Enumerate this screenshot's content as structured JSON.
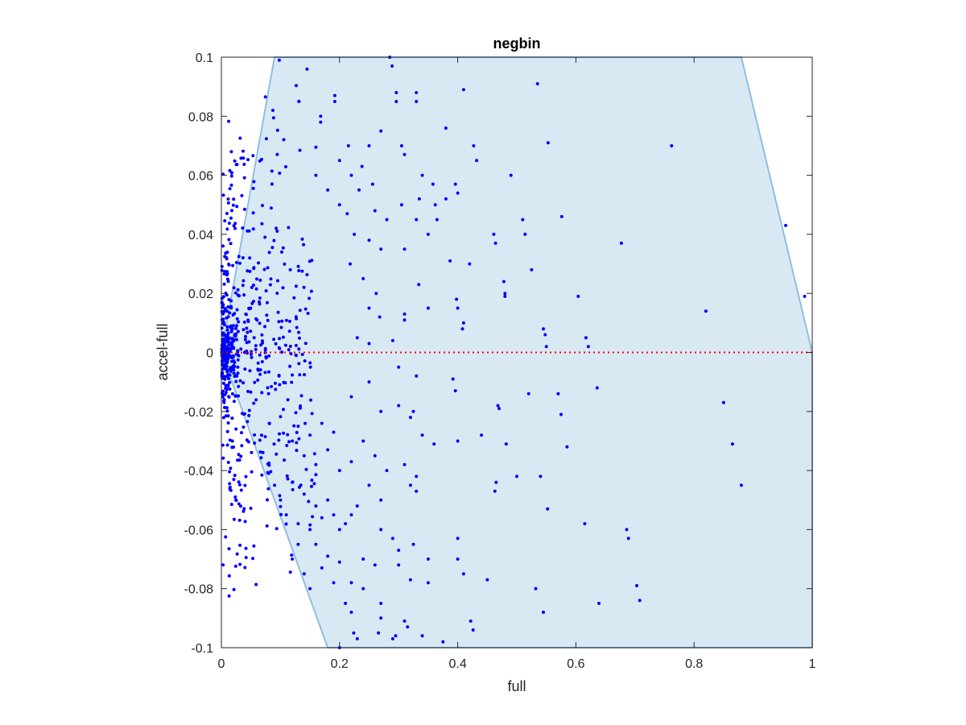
{
  "chart_data": {
    "type": "scatter",
    "title": "negbin",
    "xlabel": "full",
    "ylabel": "accel-full",
    "xlim": [
      0,
      1
    ],
    "ylim": [
      -0.1,
      0.1
    ],
    "xticks": [
      "0",
      "0.2",
      "0.4",
      "0.6",
      "0.8",
      "1"
    ],
    "xtick_values": [
      0,
      0.2,
      0.4,
      0.6,
      0.8,
      1
    ],
    "yticks": [
      "-0.1",
      "-0.08",
      "-0.06",
      "-0.04",
      "-0.02",
      "0",
      "0.02",
      "0.04",
      "0.06",
      "0.08",
      "0.1"
    ],
    "ytick_values": [
      -0.1,
      -0.08,
      -0.06,
      -0.04,
      -0.02,
      0,
      0.02,
      0.04,
      0.06,
      0.08,
      0.1
    ],
    "grid": false,
    "region": {
      "polygon": [
        [
          0,
          0
        ],
        [
          0.09,
          0.1
        ],
        [
          0.88,
          0.1
        ],
        [
          1.0,
          0
        ],
        [
          1.0,
          -0.1
        ],
        [
          0.18,
          -0.1
        ]
      ],
      "fill_color": "#d9e9f4",
      "edge_color": "#8fbfe0"
    },
    "reference_line": {
      "y": 0,
      "color": "#ff0000",
      "style": "dotted"
    },
    "marker_color": "#0000ff",
    "points": [
      [
        0.098,
        0.099
      ],
      [
        0.285,
        0.1
      ],
      [
        0.289,
        0.097
      ],
      [
        0.145,
        0.096
      ],
      [
        0.535,
        0.091
      ],
      [
        0.41,
        0.089
      ],
      [
        0.192,
        0.087
      ],
      [
        0.192,
        0.085
      ],
      [
        0.296,
        0.088
      ],
      [
        0.296,
        0.085
      ],
      [
        0.33,
        0.088
      ],
      [
        0.33,
        0.085
      ],
      [
        0.131,
        0.085
      ],
      [
        0.087,
        0.082
      ],
      [
        0.168,
        0.08
      ],
      [
        0.168,
        0.078
      ],
      [
        0.27,
        0.075
      ],
      [
        0.38,
        0.076
      ],
      [
        0.553,
        0.071
      ],
      [
        0.427,
        0.07
      ],
      [
        0.432,
        0.065
      ],
      [
        0.762,
        0.07
      ],
      [
        0.215,
        0.07
      ],
      [
        0.25,
        0.07
      ],
      [
        0.305,
        0.07
      ],
      [
        0.31,
        0.067
      ],
      [
        0.34,
        0.06
      ],
      [
        0.49,
        0.06
      ],
      [
        0.2,
        0.065
      ],
      [
        0.22,
        0.06
      ],
      [
        0.238,
        0.063
      ],
      [
        0.256,
        0.057
      ],
      [
        0.16,
        0.06
      ],
      [
        0.18,
        0.055
      ],
      [
        0.358,
        0.057
      ],
      [
        0.38,
        0.052
      ],
      [
        0.396,
        0.057
      ],
      [
        0.4,
        0.054
      ],
      [
        0.2,
        0.05
      ],
      [
        0.213,
        0.047
      ],
      [
        0.233,
        0.055
      ],
      [
        0.26,
        0.048
      ],
      [
        0.28,
        0.045
      ],
      [
        0.305,
        0.05
      ],
      [
        0.335,
        0.052
      ],
      [
        0.362,
        0.05
      ],
      [
        0.365,
        0.045
      ],
      [
        0.51,
        0.045
      ],
      [
        0.576,
        0.046
      ],
      [
        0.33,
        0.045
      ],
      [
        0.35,
        0.04
      ],
      [
        0.461,
        0.04
      ],
      [
        0.464,
        0.037
      ],
      [
        0.514,
        0.04
      ],
      [
        0.677,
        0.037
      ],
      [
        0.955,
        0.043
      ],
      [
        0.225,
        0.04
      ],
      [
        0.25,
        0.038
      ],
      [
        0.27,
        0.035
      ],
      [
        0.31,
        0.035
      ],
      [
        0.387,
        0.031
      ],
      [
        0.42,
        0.03
      ],
      [
        0.525,
        0.028
      ],
      [
        0.218,
        0.03
      ],
      [
        0.24,
        0.025
      ],
      [
        0.262,
        0.02
      ],
      [
        0.334,
        0.023
      ],
      [
        0.478,
        0.024
      ],
      [
        0.48,
        0.02
      ],
      [
        0.48,
        0.019
      ],
      [
        0.604,
        0.019
      ],
      [
        0.987,
        0.019
      ],
      [
        0.25,
        0.015
      ],
      [
        0.268,
        0.012
      ],
      [
        0.31,
        0.013
      ],
      [
        0.31,
        0.011
      ],
      [
        0.35,
        0.015
      ],
      [
        0.398,
        0.018
      ],
      [
        0.4,
        0.015
      ],
      [
        0.82,
        0.014
      ],
      [
        0.41,
        0.01
      ],
      [
        0.408,
        0.008
      ],
      [
        0.545,
        0.008
      ],
      [
        0.548,
        0.006
      ],
      [
        0.55,
        0.002
      ],
      [
        0.617,
        0.005
      ],
      [
        0.621,
        0.002
      ],
      [
        0.23,
        0.005
      ],
      [
        0.25,
        0.003
      ],
      [
        0.29,
        0.004
      ],
      [
        0.3,
        -0.005
      ],
      [
        0.33,
        -0.008
      ],
      [
        0.392,
        -0.009
      ],
      [
        0.396,
        -0.013
      ],
      [
        0.468,
        -0.018
      ],
      [
        0.47,
        -0.019
      ],
      [
        0.52,
        -0.014
      ],
      [
        0.57,
        -0.014
      ],
      [
        0.575,
        -0.021
      ],
      [
        0.636,
        -0.012
      ],
      [
        0.85,
        -0.017
      ],
      [
        0.25,
        -0.01
      ],
      [
        0.22,
        -0.015
      ],
      [
        0.27,
        -0.02
      ],
      [
        0.3,
        -0.018
      ],
      [
        0.325,
        -0.02
      ],
      [
        0.32,
        -0.022
      ],
      [
        0.34,
        -0.028
      ],
      [
        0.36,
        -0.031
      ],
      [
        0.4,
        -0.03
      ],
      [
        0.44,
        -0.028
      ],
      [
        0.482,
        -0.031
      ],
      [
        0.585,
        -0.032
      ],
      [
        0.865,
        -0.031
      ],
      [
        0.24,
        -0.03
      ],
      [
        0.26,
        -0.035
      ],
      [
        0.28,
        -0.04
      ],
      [
        0.31,
        -0.038
      ],
      [
        0.33,
        -0.042
      ],
      [
        0.465,
        -0.044
      ],
      [
        0.463,
        -0.047
      ],
      [
        0.5,
        -0.042
      ],
      [
        0.54,
        -0.042
      ],
      [
        0.88,
        -0.045
      ],
      [
        0.25,
        -0.045
      ],
      [
        0.27,
        -0.05
      ],
      [
        0.32,
        -0.045
      ],
      [
        0.33,
        -0.047
      ],
      [
        0.552,
        -0.053
      ],
      [
        0.615,
        -0.058
      ],
      [
        0.686,
        -0.06
      ],
      [
        0.689,
        -0.063
      ],
      [
        0.27,
        -0.06
      ],
      [
        0.29,
        -0.063
      ],
      [
        0.3,
        -0.067
      ],
      [
        0.325,
        -0.065
      ],
      [
        0.4,
        -0.063
      ],
      [
        0.24,
        -0.07
      ],
      [
        0.26,
        -0.072
      ],
      [
        0.3,
        -0.072
      ],
      [
        0.35,
        -0.07
      ],
      [
        0.4,
        -0.07
      ],
      [
        0.22,
        -0.078
      ],
      [
        0.24,
        -0.08
      ],
      [
        0.27,
        -0.085
      ],
      [
        0.32,
        -0.077
      ],
      [
        0.35,
        -0.078
      ],
      [
        0.41,
        -0.075
      ],
      [
        0.45,
        -0.077
      ],
      [
        0.532,
        -0.08
      ],
      [
        0.703,
        -0.079
      ],
      [
        0.708,
        -0.084
      ],
      [
        0.639,
        -0.085
      ],
      [
        0.545,
        -0.088
      ],
      [
        0.22,
        -0.088
      ],
      [
        0.27,
        -0.09
      ],
      [
        0.31,
        -0.091
      ],
      [
        0.315,
        -0.093
      ],
      [
        0.422,
        -0.091
      ],
      [
        0.426,
        -0.094
      ],
      [
        0.224,
        -0.095
      ],
      [
        0.266,
        -0.095
      ],
      [
        0.29,
        -0.097
      ],
      [
        0.295,
        -0.096
      ],
      [
        0.34,
        -0.096
      ],
      [
        0.375,
        -0.098
      ],
      [
        0.2,
        -0.1
      ],
      [
        0.23,
        -0.097
      ],
      [
        0.12,
        -0.07
      ],
      [
        0.13,
        -0.065
      ],
      [
        0.14,
        -0.075
      ],
      [
        0.15,
        -0.08
      ],
      [
        0.16,
        -0.065
      ],
      [
        0.17,
        -0.073
      ],
      [
        0.18,
        -0.069
      ],
      [
        0.19,
        -0.078
      ],
      [
        0.2,
        -0.071
      ],
      [
        0.21,
        -0.085
      ],
      [
        0.08,
        -0.041
      ],
      [
        0.09,
        -0.045
      ],
      [
        0.1,
        -0.05
      ],
      [
        0.11,
        -0.055
      ],
      [
        0.12,
        -0.044
      ],
      [
        0.13,
        -0.058
      ],
      [
        0.14,
        -0.048
      ],
      [
        0.15,
        -0.06
      ],
      [
        0.16,
        -0.052
      ],
      [
        0.17,
        -0.056
      ],
      [
        0.18,
        -0.05
      ],
      [
        0.19,
        -0.055
      ],
      [
        0.2,
        -0.06
      ],
      [
        0.21,
        -0.058
      ],
      [
        0.22,
        -0.055
      ],
      [
        0.23,
        -0.052
      ],
      [
        0.12,
        -0.03
      ],
      [
        0.14,
        -0.035
      ],
      [
        0.16,
        -0.038
      ],
      [
        0.18,
        -0.033
      ],
      [
        0.2,
        -0.04
      ],
      [
        0.22,
        -0.037
      ],
      [
        0.13,
        -0.025
      ],
      [
        0.15,
        -0.028
      ],
      [
        0.17,
        -0.024
      ],
      [
        0.19,
        -0.027
      ]
    ]
  }
}
